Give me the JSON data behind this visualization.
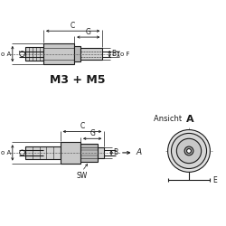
{
  "bg_color": "#ffffff",
  "line_color": "#1a1a1a",
  "title1": "M3 + M5",
  "ansicht_label": "Ansicht ",
  "ansicht_A": "A"
}
